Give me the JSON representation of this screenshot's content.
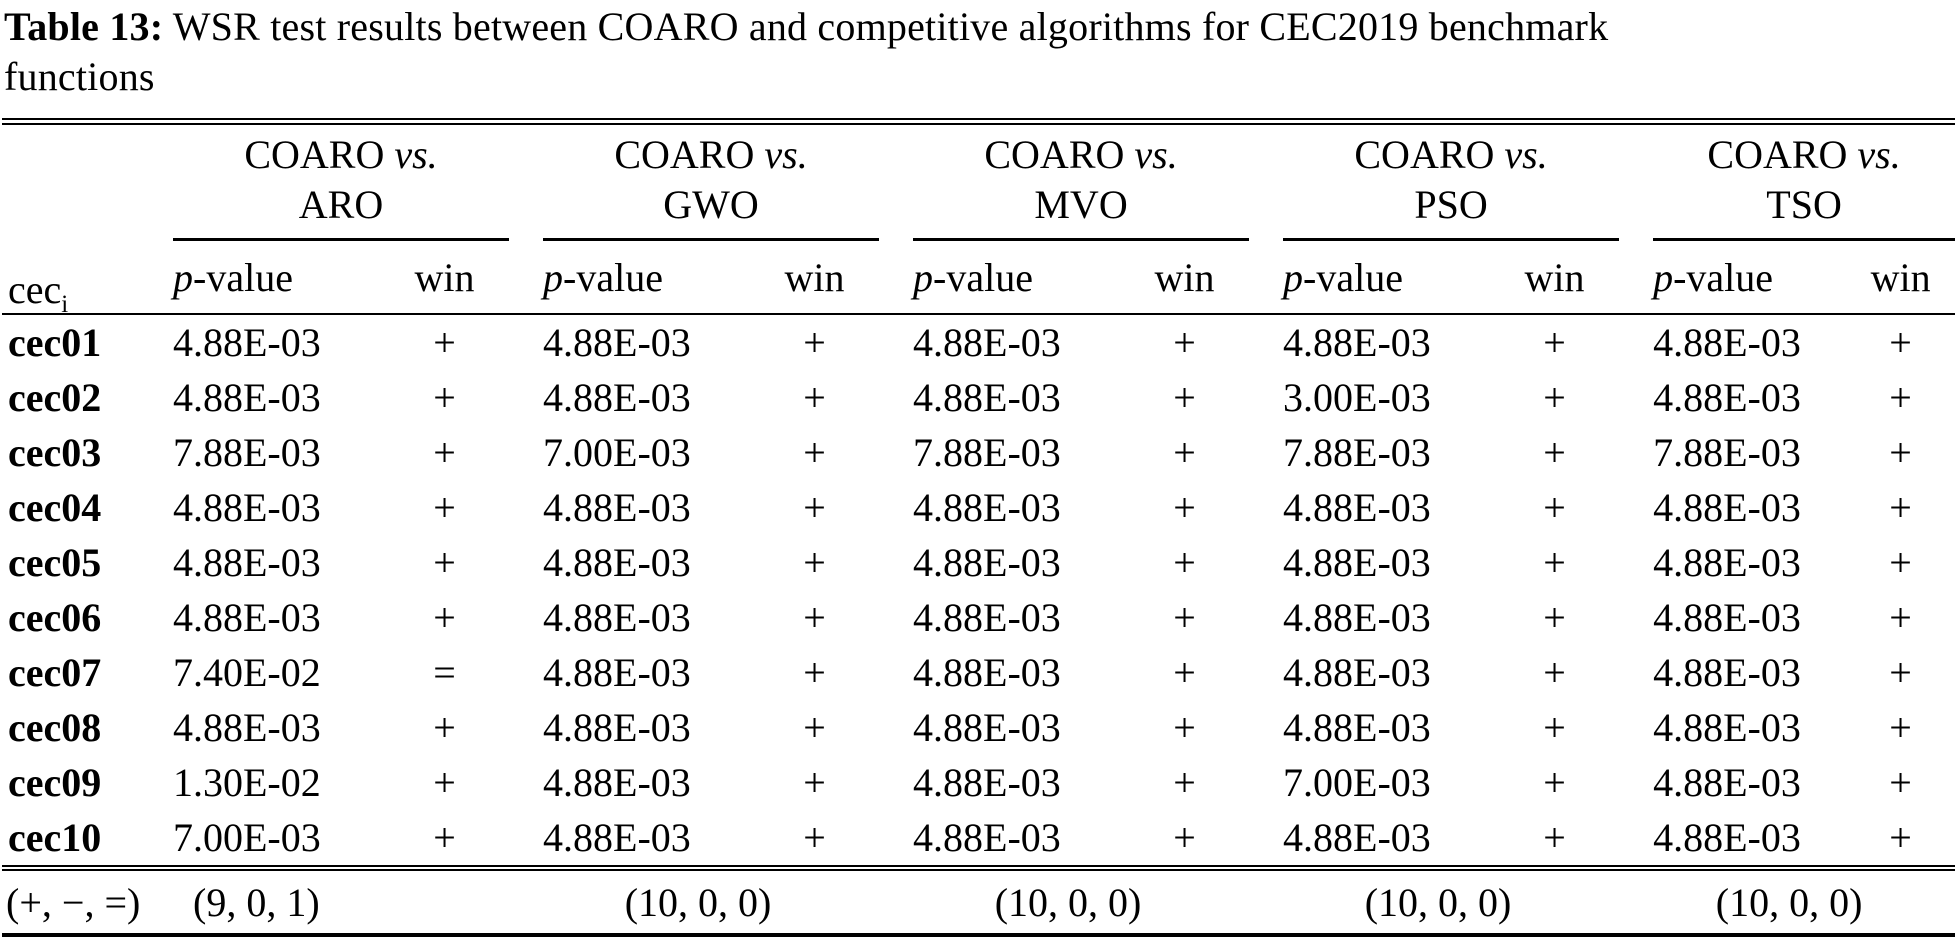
{
  "page": {
    "background": "#ffffff",
    "text_color": "#000000"
  },
  "title": {
    "bold": "Table 13:",
    "line1_rest": " WSR test results between COARO and competitive algorithms for CEC2019 benchmark",
    "line2": "functions"
  },
  "table": {
    "corner_header": {
      "base": "cec",
      "subscript": "i"
    },
    "groups": [
      {
        "first": "COARO",
        "vs": "vs.",
        "second": "ARO"
      },
      {
        "first": "COARO",
        "vs": "vs.",
        "second": "GWO"
      },
      {
        "first": "COARO",
        "vs": "vs.",
        "second": "MVO"
      },
      {
        "first": "COARO",
        "vs": "vs.",
        "second": "PSO"
      },
      {
        "first": "COARO",
        "vs": "vs.",
        "second": "TSO"
      }
    ],
    "col_headers": {
      "p_italic": "p",
      "p_rest": "-value",
      "win": "win"
    },
    "rows": [
      {
        "label": "cec01",
        "cells": [
          {
            "p": "4.88E-03",
            "win": "+"
          },
          {
            "p": "4.88E-03",
            "win": "+"
          },
          {
            "p": "4.88E-03",
            "win": "+"
          },
          {
            "p": "4.88E-03",
            "win": "+"
          },
          {
            "p": "4.88E-03",
            "win": "+"
          }
        ]
      },
      {
        "label": "cec02",
        "cells": [
          {
            "p": "4.88E-03",
            "win": "+"
          },
          {
            "p": "4.88E-03",
            "win": "+"
          },
          {
            "p": "4.88E-03",
            "win": "+"
          },
          {
            "p": "3.00E-03",
            "win": "+"
          },
          {
            "p": "4.88E-03",
            "win": "+"
          }
        ]
      },
      {
        "label": "cec03",
        "cells": [
          {
            "p": "7.88E-03",
            "win": "+"
          },
          {
            "p": "7.00E-03",
            "win": "+"
          },
          {
            "p": "7.88E-03",
            "win": "+"
          },
          {
            "p": "7.88E-03",
            "win": "+"
          },
          {
            "p": "7.88E-03",
            "win": "+"
          }
        ]
      },
      {
        "label": "cec04",
        "cells": [
          {
            "p": "4.88E-03",
            "win": "+"
          },
          {
            "p": "4.88E-03",
            "win": "+"
          },
          {
            "p": "4.88E-03",
            "win": "+"
          },
          {
            "p": "4.88E-03",
            "win": "+"
          },
          {
            "p": "4.88E-03",
            "win": "+"
          }
        ]
      },
      {
        "label": "cec05",
        "cells": [
          {
            "p": "4.88E-03",
            "win": "+"
          },
          {
            "p": "4.88E-03",
            "win": "+"
          },
          {
            "p": "4.88E-03",
            "win": "+"
          },
          {
            "p": "4.88E-03",
            "win": "+"
          },
          {
            "p": "4.88E-03",
            "win": "+"
          }
        ]
      },
      {
        "label": "cec06",
        "cells": [
          {
            "p": "4.88E-03",
            "win": "+"
          },
          {
            "p": "4.88E-03",
            "win": "+"
          },
          {
            "p": "4.88E-03",
            "win": "+"
          },
          {
            "p": "4.88E-03",
            "win": "+"
          },
          {
            "p": "4.88E-03",
            "win": "+"
          }
        ]
      },
      {
        "label": "cec07",
        "cells": [
          {
            "p": "7.40E-02",
            "win": "="
          },
          {
            "p": "4.88E-03",
            "win": "+"
          },
          {
            "p": "4.88E-03",
            "win": "+"
          },
          {
            "p": "4.88E-03",
            "win": "+"
          },
          {
            "p": "4.88E-03",
            "win": "+"
          }
        ]
      },
      {
        "label": "cec08",
        "cells": [
          {
            "p": "4.88E-03",
            "win": "+"
          },
          {
            "p": "4.88E-03",
            "win": "+"
          },
          {
            "p": "4.88E-03",
            "win": "+"
          },
          {
            "p": "4.88E-03",
            "win": "+"
          },
          {
            "p": "4.88E-03",
            "win": "+"
          }
        ]
      },
      {
        "label": "cec09",
        "cells": [
          {
            "p": "1.30E-02",
            "win": "+"
          },
          {
            "p": "4.88E-03",
            "win": "+"
          },
          {
            "p": "4.88E-03",
            "win": "+"
          },
          {
            "p": "7.00E-03",
            "win": "+"
          },
          {
            "p": "4.88E-03",
            "win": "+"
          }
        ]
      },
      {
        "label": "cec10",
        "cells": [
          {
            "p": "7.00E-03",
            "win": "+"
          },
          {
            "p": "4.88E-03",
            "win": "+"
          },
          {
            "p": "4.88E-03",
            "win": "+"
          },
          {
            "p": "4.88E-03",
            "win": "+"
          },
          {
            "p": "4.88E-03",
            "win": "+"
          }
        ]
      }
    ],
    "summary": {
      "label": "(+, −, =)",
      "values": [
        "(9, 0, 1)",
        "(10, 0, 0)",
        "(10, 0, 0)",
        "(10, 0, 0)",
        "(10, 0, 0)"
      ]
    }
  }
}
